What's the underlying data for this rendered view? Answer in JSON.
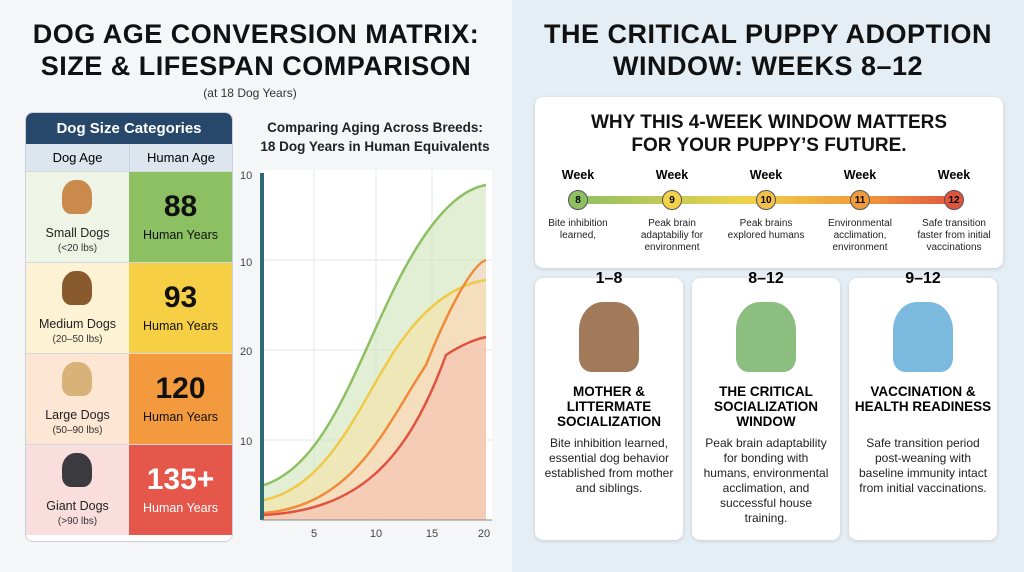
{
  "left": {
    "title_lines": [
      "DOG AGE CONVERSION MATRIX:",
      "SIZE & LIFESPAN COMPARISON"
    ],
    "subtitle": "(at 18 Dog Years)",
    "table": {
      "caption": "Dog Size Categories",
      "headers": [
        "Dog Age",
        "Human Age"
      ],
      "rows": [
        {
          "size": "Small Dogs",
          "weight": "(<20 lbs)",
          "age": "88",
          "unit": "Human Years"
        },
        {
          "size": "Medium Dogs",
          "weight": "(20–50 lbs)",
          "age": "93",
          "unit": "Human Years"
        },
        {
          "size": "Large Dogs",
          "weight": "(50–90 lbs)",
          "age": "120",
          "unit": "Human Years"
        },
        {
          "size": "Giant Dogs",
          "weight": "(>90 lbs)",
          "age": "135+",
          "unit": "Human Years"
        }
      ]
    },
    "chart": {
      "title_lines": [
        "Comparing Aging Across Breeds:",
        "18 Dog Years in Human Equivalents"
      ],
      "y_labels": [
        "10",
        "10",
        "20",
        "10"
      ],
      "x_labels": [
        "5",
        "10",
        "15",
        "20"
      ]
    }
  },
  "right": {
    "title_lines": [
      "THE CRITICAL PUPPY ADOPTION",
      "WINDOW: WEEKS 8–12"
    ],
    "box": {
      "heading_lines": [
        "WHY THIS 4-WEEK WINDOW MATTERS",
        "FOR YOUR PUPPY’S FUTURE."
      ],
      "timeline": [
        {
          "label": "Week",
          "week": "8",
          "caption": "Bite inhibition learned,"
        },
        {
          "label": "Week",
          "week": "9",
          "caption": "Peak brain adaptabiliy for environment"
        },
        {
          "label": "Week",
          "week": "10",
          "caption": "Peak brains explored humans"
        },
        {
          "label": "Week",
          "week": "11",
          "caption": "Environmental acclimation, environment"
        },
        {
          "label": "Week",
          "week": "12",
          "caption": "Safe transition faster from initial vaccinations"
        }
      ]
    },
    "cards": [
      {
        "range": "1–8",
        "title": "MOTHER & LITTERMATE SOCIALIZATION",
        "body": "Bite inhibition learned, essential dog behavior established from mother and siblings."
      },
      {
        "range": "8–12",
        "title": "THE CRITICAL SOCIALIZATION WINDOW",
        "body": "Peak brain adaptability for bonding with humans, environmental acclimation, and successful house training."
      },
      {
        "range": "9–12",
        "title": "VACCINATION & HEALTH READINESS",
        "body": "Safe transition period post-weaning with baseline immunity intact from initial vaccinations."
      }
    ]
  }
}
